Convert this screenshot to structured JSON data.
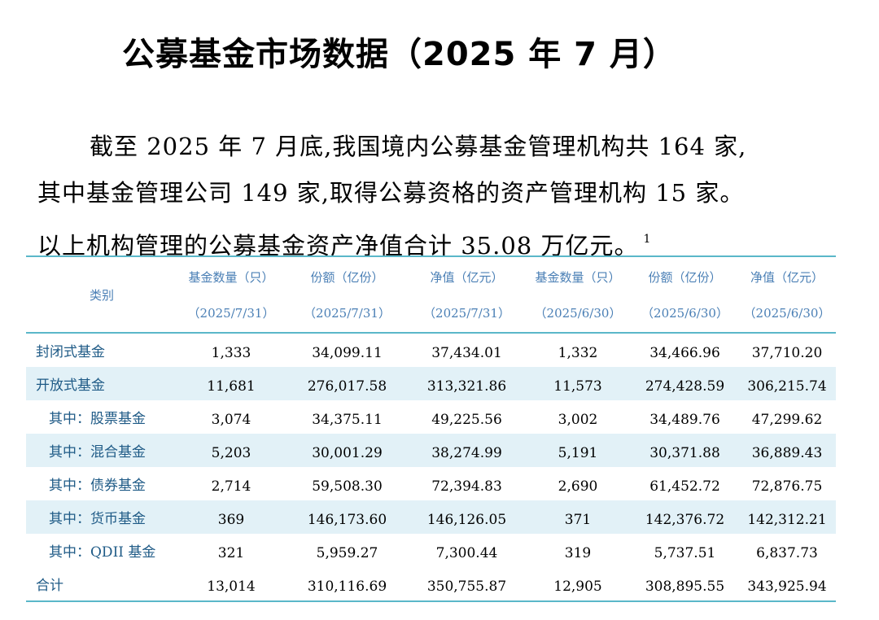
{
  "title": "公募基金市场数据（2025 年 7 月）",
  "paragraph": {
    "line1": "截至 2025 年 7 月底,我国境内公募基金管理机构共 164 家,",
    "line2": "其中基金管理公司 149 家,取得公募资格的资产管理机构 15 家。",
    "line3": "以上机构管理的公募基金资产净值合计 35.08 万亿元。",
    "footnote": "1"
  },
  "table": {
    "category_header": "类别",
    "columns": [
      {
        "label": "基金数量（只）",
        "date": "（2025/7/31）"
      },
      {
        "label": "份额（亿份）",
        "date": "（2025/7/31）"
      },
      {
        "label": "净值（亿元）",
        "date": "（2025/7/31）"
      },
      {
        "label": "基金数量（只）",
        "date": "（2025/6/30）"
      },
      {
        "label": "份额（亿份）",
        "date": "（2025/6/30）"
      },
      {
        "label": "净值（亿元）",
        "date": "（2025/6/30）"
      }
    ],
    "rows": [
      {
        "name": "封闭式基金",
        "values": [
          "1,333",
          "34,099.11",
          "37,434.01",
          "1,332",
          "34,466.96",
          "37,710.20"
        ]
      },
      {
        "name": "开放式基金",
        "values": [
          "11,681",
          "276,017.58",
          "313,321.86",
          "11,573",
          "274,428.59",
          "306,215.74"
        ]
      },
      {
        "name": "其中：股票基金",
        "values": [
          "3,074",
          "34,375.11",
          "49,225.56",
          "3,002",
          "34,489.76",
          "47,299.62"
        ]
      },
      {
        "name": "其中：混合基金",
        "values": [
          "5,203",
          "30,001.29",
          "38,274.99",
          "5,191",
          "30,371.88",
          "36,889.43"
        ]
      },
      {
        "name": "其中：债券基金",
        "values": [
          "2,714",
          "59,508.30",
          "72,394.83",
          "2,690",
          "61,452.72",
          "72,876.75"
        ]
      },
      {
        "name": "其中：货币基金",
        "values": [
          "369",
          "146,173.60",
          "146,126.05",
          "371",
          "142,376.72",
          "142,312.21"
        ]
      },
      {
        "name": "其中：QDII 基金",
        "values": [
          "321",
          "5,959.27",
          "7,300.44",
          "319",
          "5,737.51",
          "6,837.73"
        ]
      },
      {
        "name": "合计",
        "values": [
          "13,014",
          "310,116.69",
          "350,755.87",
          "12,905",
          "308,895.55",
          "343,925.94"
        ]
      }
    ]
  }
}
